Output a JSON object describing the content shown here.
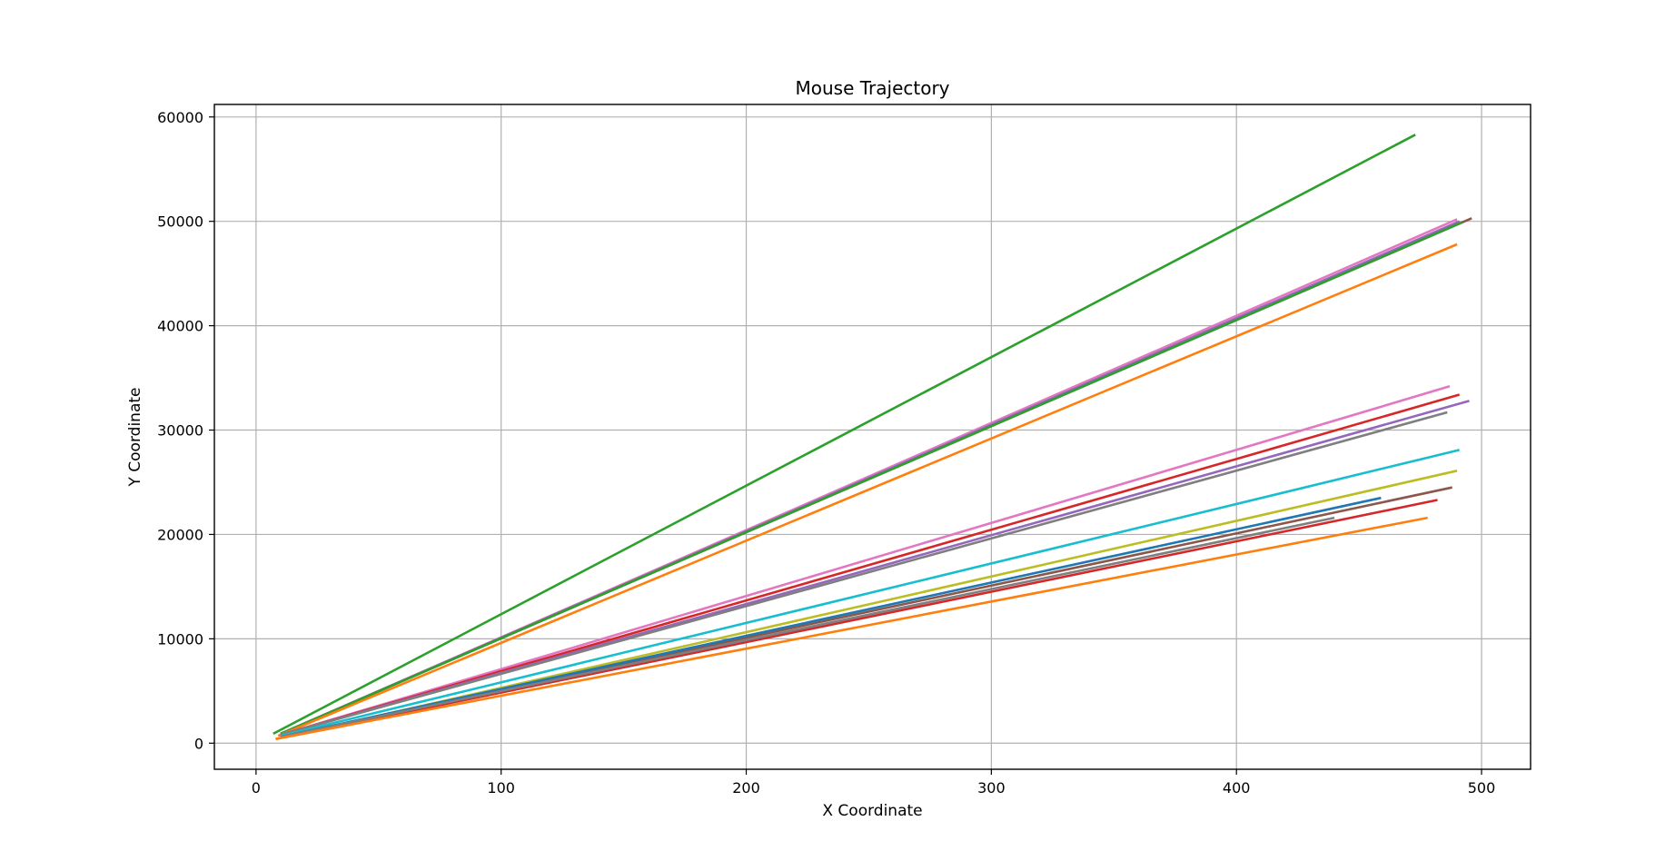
{
  "chart_data": {
    "type": "line",
    "title": "Mouse Trajectory",
    "xlabel": "X Coordinate",
    "ylabel": "Y Coordinate",
    "xlim": [
      -17,
      520
    ],
    "ylim": [
      -2500,
      61200
    ],
    "xticks": [
      0,
      100,
      200,
      300,
      400,
      500
    ],
    "yticks": [
      0,
      10000,
      20000,
      30000,
      40000,
      50000,
      60000
    ],
    "grid": true,
    "series": [
      {
        "color": "#2ca02c",
        "x": [
          7,
          473
        ],
        "y": [
          900,
          58300
        ]
      },
      {
        "color": "#e377c2",
        "x": [
          10,
          490
        ],
        "y": [
          900,
          50200
        ]
      },
      {
        "color": "#9467bd",
        "x": [
          10,
          491
        ],
        "y": [
          900,
          50000
        ]
      },
      {
        "color": "#8c564b",
        "x": [
          10,
          496
        ],
        "y": [
          900,
          50300
        ]
      },
      {
        "color": "#2ca02c",
        "x": [
          10,
          492
        ],
        "y": [
          900,
          49900
        ]
      },
      {
        "color": "#ff7f0e",
        "x": [
          9,
          490
        ],
        "y": [
          700,
          47800
        ]
      },
      {
        "color": "#e377c2",
        "x": [
          10,
          487
        ],
        "y": [
          800,
          34200
        ]
      },
      {
        "color": "#d62728",
        "x": [
          10,
          491
        ],
        "y": [
          800,
          33400
        ]
      },
      {
        "color": "#9467bd",
        "x": [
          10,
          495
        ],
        "y": [
          800,
          32800
        ]
      },
      {
        "color": "#7f7f7f",
        "x": [
          10,
          486
        ],
        "y": [
          800,
          31700
        ]
      },
      {
        "color": "#17becf",
        "x": [
          10,
          491
        ],
        "y": [
          700,
          28100
        ]
      },
      {
        "color": "#bcbd22",
        "x": [
          8,
          490
        ],
        "y": [
          400,
          26100
        ]
      },
      {
        "color": "#8c564b",
        "x": [
          10,
          488
        ],
        "y": [
          600,
          24500
        ]
      },
      {
        "color": "#1f77b4",
        "x": [
          10,
          459
        ],
        "y": [
          600,
          23500
        ]
      },
      {
        "color": "#d62728",
        "x": [
          12,
          482
        ],
        "y": [
          600,
          23300
        ]
      },
      {
        "color": "#7f7f7f",
        "x": [
          10,
          440
        ],
        "y": [
          600,
          21600
        ]
      },
      {
        "color": "#ff7f0e",
        "x": [
          8,
          478
        ],
        "y": [
          400,
          21600
        ]
      }
    ]
  }
}
